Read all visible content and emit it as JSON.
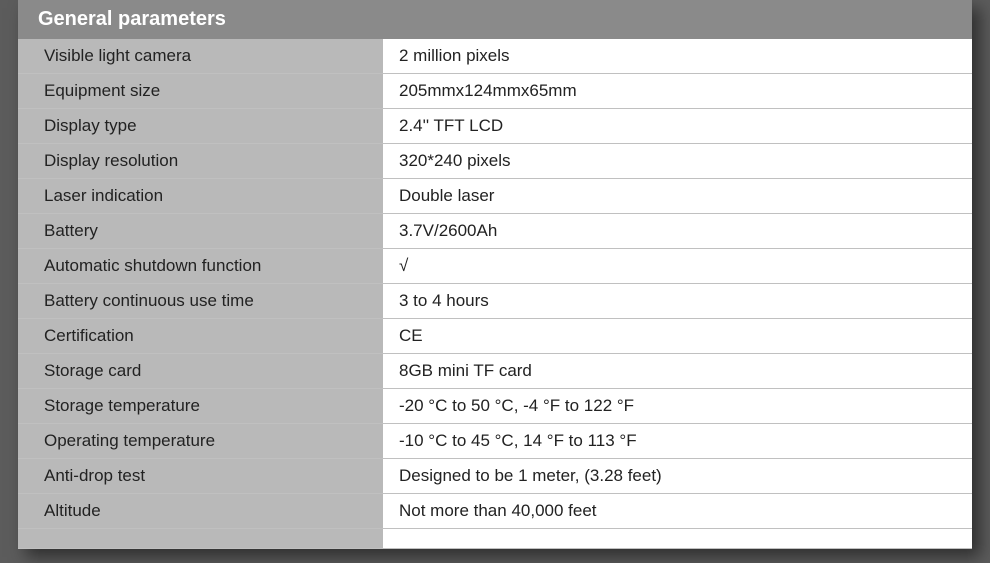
{
  "header": {
    "title": "General parameters"
  },
  "table": {
    "rows": [
      {
        "label": "Visible light camera",
        "value": "2 million pixels"
      },
      {
        "label": "Equipment size",
        "value": "205mmx124mmx65mm"
      },
      {
        "label": "Display type",
        "value": "2.4'' TFT LCD"
      },
      {
        "label": "Display resolution",
        "value": "320*240 pixels"
      },
      {
        "label": "Laser indication",
        "value": "Double laser"
      },
      {
        "label": "Battery",
        "value": "3.7V/2600Ah"
      },
      {
        "label": "Automatic shutdown function",
        "value": "√"
      },
      {
        "label": "Battery continuous use time",
        "value": "3 to 4 hours"
      },
      {
        "label": "Certification",
        "value": "CE"
      },
      {
        "label": "Storage card",
        "value": "8GB mini TF card"
      },
      {
        "label": "Storage temperature",
        "value": "-20 °C to 50 °C, -4 °F to 122 °F"
      },
      {
        "label": "Operating temperature",
        "value": "-10 °C to 45 °C, 14 °F to 113 °F"
      },
      {
        "label": "Anti-drop test",
        "value": "Designed to be 1 meter, (3.28 feet)"
      },
      {
        "label": "Altitude",
        "value": "Not more than 40,000 feet"
      }
    ]
  },
  "styling": {
    "page_background": "#5c5c5c",
    "header_background": "#8a8a8a",
    "header_text_color": "#ffffff",
    "header_font_size": 20,
    "label_background": "#b9b9b9",
    "value_background": "#ffffff",
    "row_border_color": "#c0c0c0",
    "cell_text_color": "#222222",
    "cell_font_size": 17,
    "label_column_width": 365,
    "container_shadow": "8px 8px 16px rgba(0,0,0,0.5)"
  }
}
